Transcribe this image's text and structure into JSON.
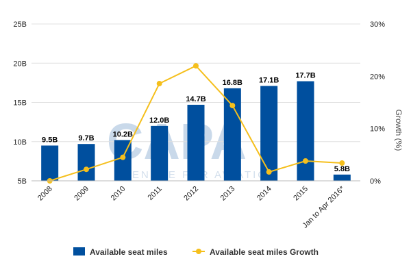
{
  "watermark": {
    "logo_text": "CAPA",
    "logo_subtext": "CENTRE FOR AVIATION"
  },
  "chart_data": {
    "type": "bar",
    "categories": [
      "2008",
      "2009",
      "2010",
      "2011",
      "2012",
      "2013",
      "2014",
      "2015",
      "Jan to Apr 2016*"
    ],
    "series": [
      {
        "name": "Available seat miles",
        "type": "bar",
        "axis": "left",
        "values": [
          9.5,
          9.7,
          10.2,
          12.0,
          14.7,
          16.8,
          17.1,
          17.7,
          5.8
        ],
        "data_labels": [
          "9.5B",
          "9.7B",
          "10.2B",
          "12.0B",
          "14.7B",
          "16.8B",
          "17.1B",
          "17.7B",
          "5.8B"
        ],
        "color": "#004f9e"
      },
      {
        "name": "Available seat miles Growth",
        "type": "line",
        "axis": "right",
        "values": [
          0.0,
          2.2,
          4.5,
          18.6,
          22.0,
          14.4,
          1.7,
          3.8,
          3.4
        ],
        "color": "#f5bf1c"
      }
    ],
    "y_left": {
      "ylim": [
        5,
        25
      ],
      "ticks": [
        "5B",
        "10B",
        "15B",
        "20B",
        "25B"
      ]
    },
    "y_right": {
      "ylim": [
        0,
        30
      ],
      "ticks": [
        "0%",
        "10%",
        "20%",
        "30%"
      ],
      "label": "Growth (%)"
    },
    "grid": true,
    "legend": "bottom"
  }
}
